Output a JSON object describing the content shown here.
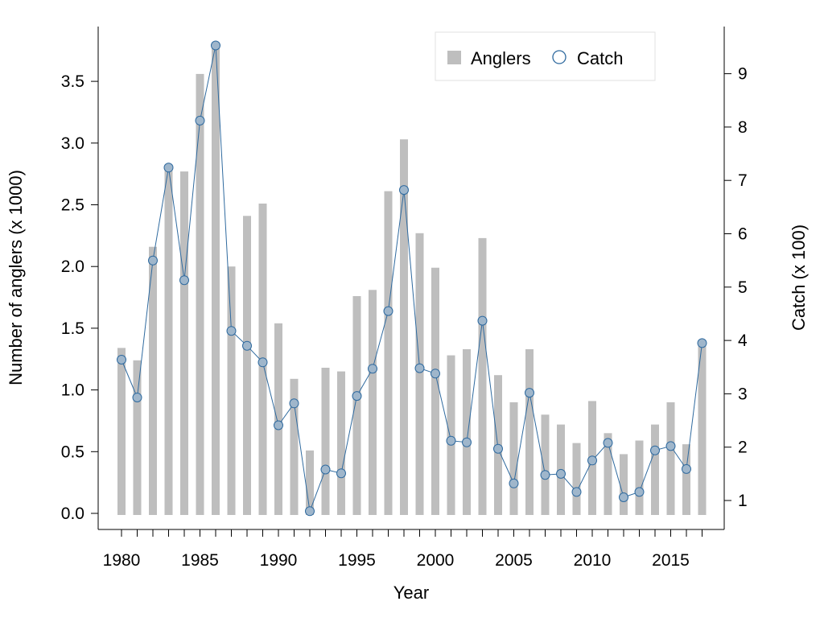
{
  "chart_data": {
    "type": "bar+line",
    "xlabel": "Year",
    "ylabel_left": "Number of anglers (x 1000)",
    "ylabel_right": "Catch (x 100)",
    "legend": {
      "position": "top-right",
      "bar_label": "Anglers",
      "line_label": "Catch"
    },
    "colors": {
      "bar": "#bebebe",
      "line": "#2f6a9f",
      "marker_fill": "#9fb6cb",
      "marker_stroke": "#2f6a9f",
      "axis": "#000000"
    },
    "x_ticks": [
      1980,
      1985,
      1990,
      1995,
      2000,
      2005,
      2010,
      2015
    ],
    "y_left_ticks": [
      "0.0",
      "0.5",
      "1.0",
      "1.5",
      "2.0",
      "2.5",
      "3.0",
      "3.5"
    ],
    "y_right_ticks": [
      "1",
      "2",
      "3",
      "4",
      "5",
      "6",
      "7",
      "8",
      "9"
    ],
    "ylim_left": [
      0,
      3.8
    ],
    "ylim_right": [
      0.8,
      9.55
    ],
    "years": [
      1980,
      1981,
      1982,
      1983,
      1984,
      1985,
      1986,
      1987,
      1988,
      1989,
      1990,
      1991,
      1992,
      1993,
      1994,
      1995,
      1996,
      1997,
      1998,
      1999,
      2000,
      2001,
      2002,
      2003,
      2004,
      2005,
      2006,
      2007,
      2008,
      2009,
      2010,
      2011,
      2012,
      2013,
      2014,
      2015,
      2016,
      2017
    ],
    "series": [
      {
        "name": "Anglers",
        "axis": "left",
        "values": [
          1.34,
          1.24,
          2.16,
          2.81,
          2.77,
          3.56,
          3.78,
          2.0,
          2.41,
          2.51,
          1.54,
          1.09,
          0.51,
          1.18,
          1.15,
          1.76,
          1.81,
          2.61,
          3.03,
          2.27,
          1.99,
          1.28,
          1.33,
          2.23,
          1.12,
          0.9,
          1.33,
          0.8,
          0.72,
          0.57,
          0.91,
          0.65,
          0.48,
          0.59,
          0.72,
          0.9,
          0.56,
          1.39
        ]
      },
      {
        "name": "Catch",
        "axis": "right",
        "values": [
          3.64,
          2.93,
          5.5,
          7.24,
          5.13,
          8.12,
          9.53,
          4.18,
          3.9,
          3.59,
          2.41,
          2.82,
          0.8,
          1.58,
          1.51,
          2.96,
          3.47,
          4.55,
          6.82,
          3.48,
          3.38,
          2.12,
          2.09,
          4.37,
          1.97,
          1.32,
          3.02,
          1.48,
          1.5,
          1.16,
          1.75,
          2.08,
          1.06,
          1.16,
          1.94,
          2.02,
          1.59,
          3.95
        ]
      }
    ]
  }
}
